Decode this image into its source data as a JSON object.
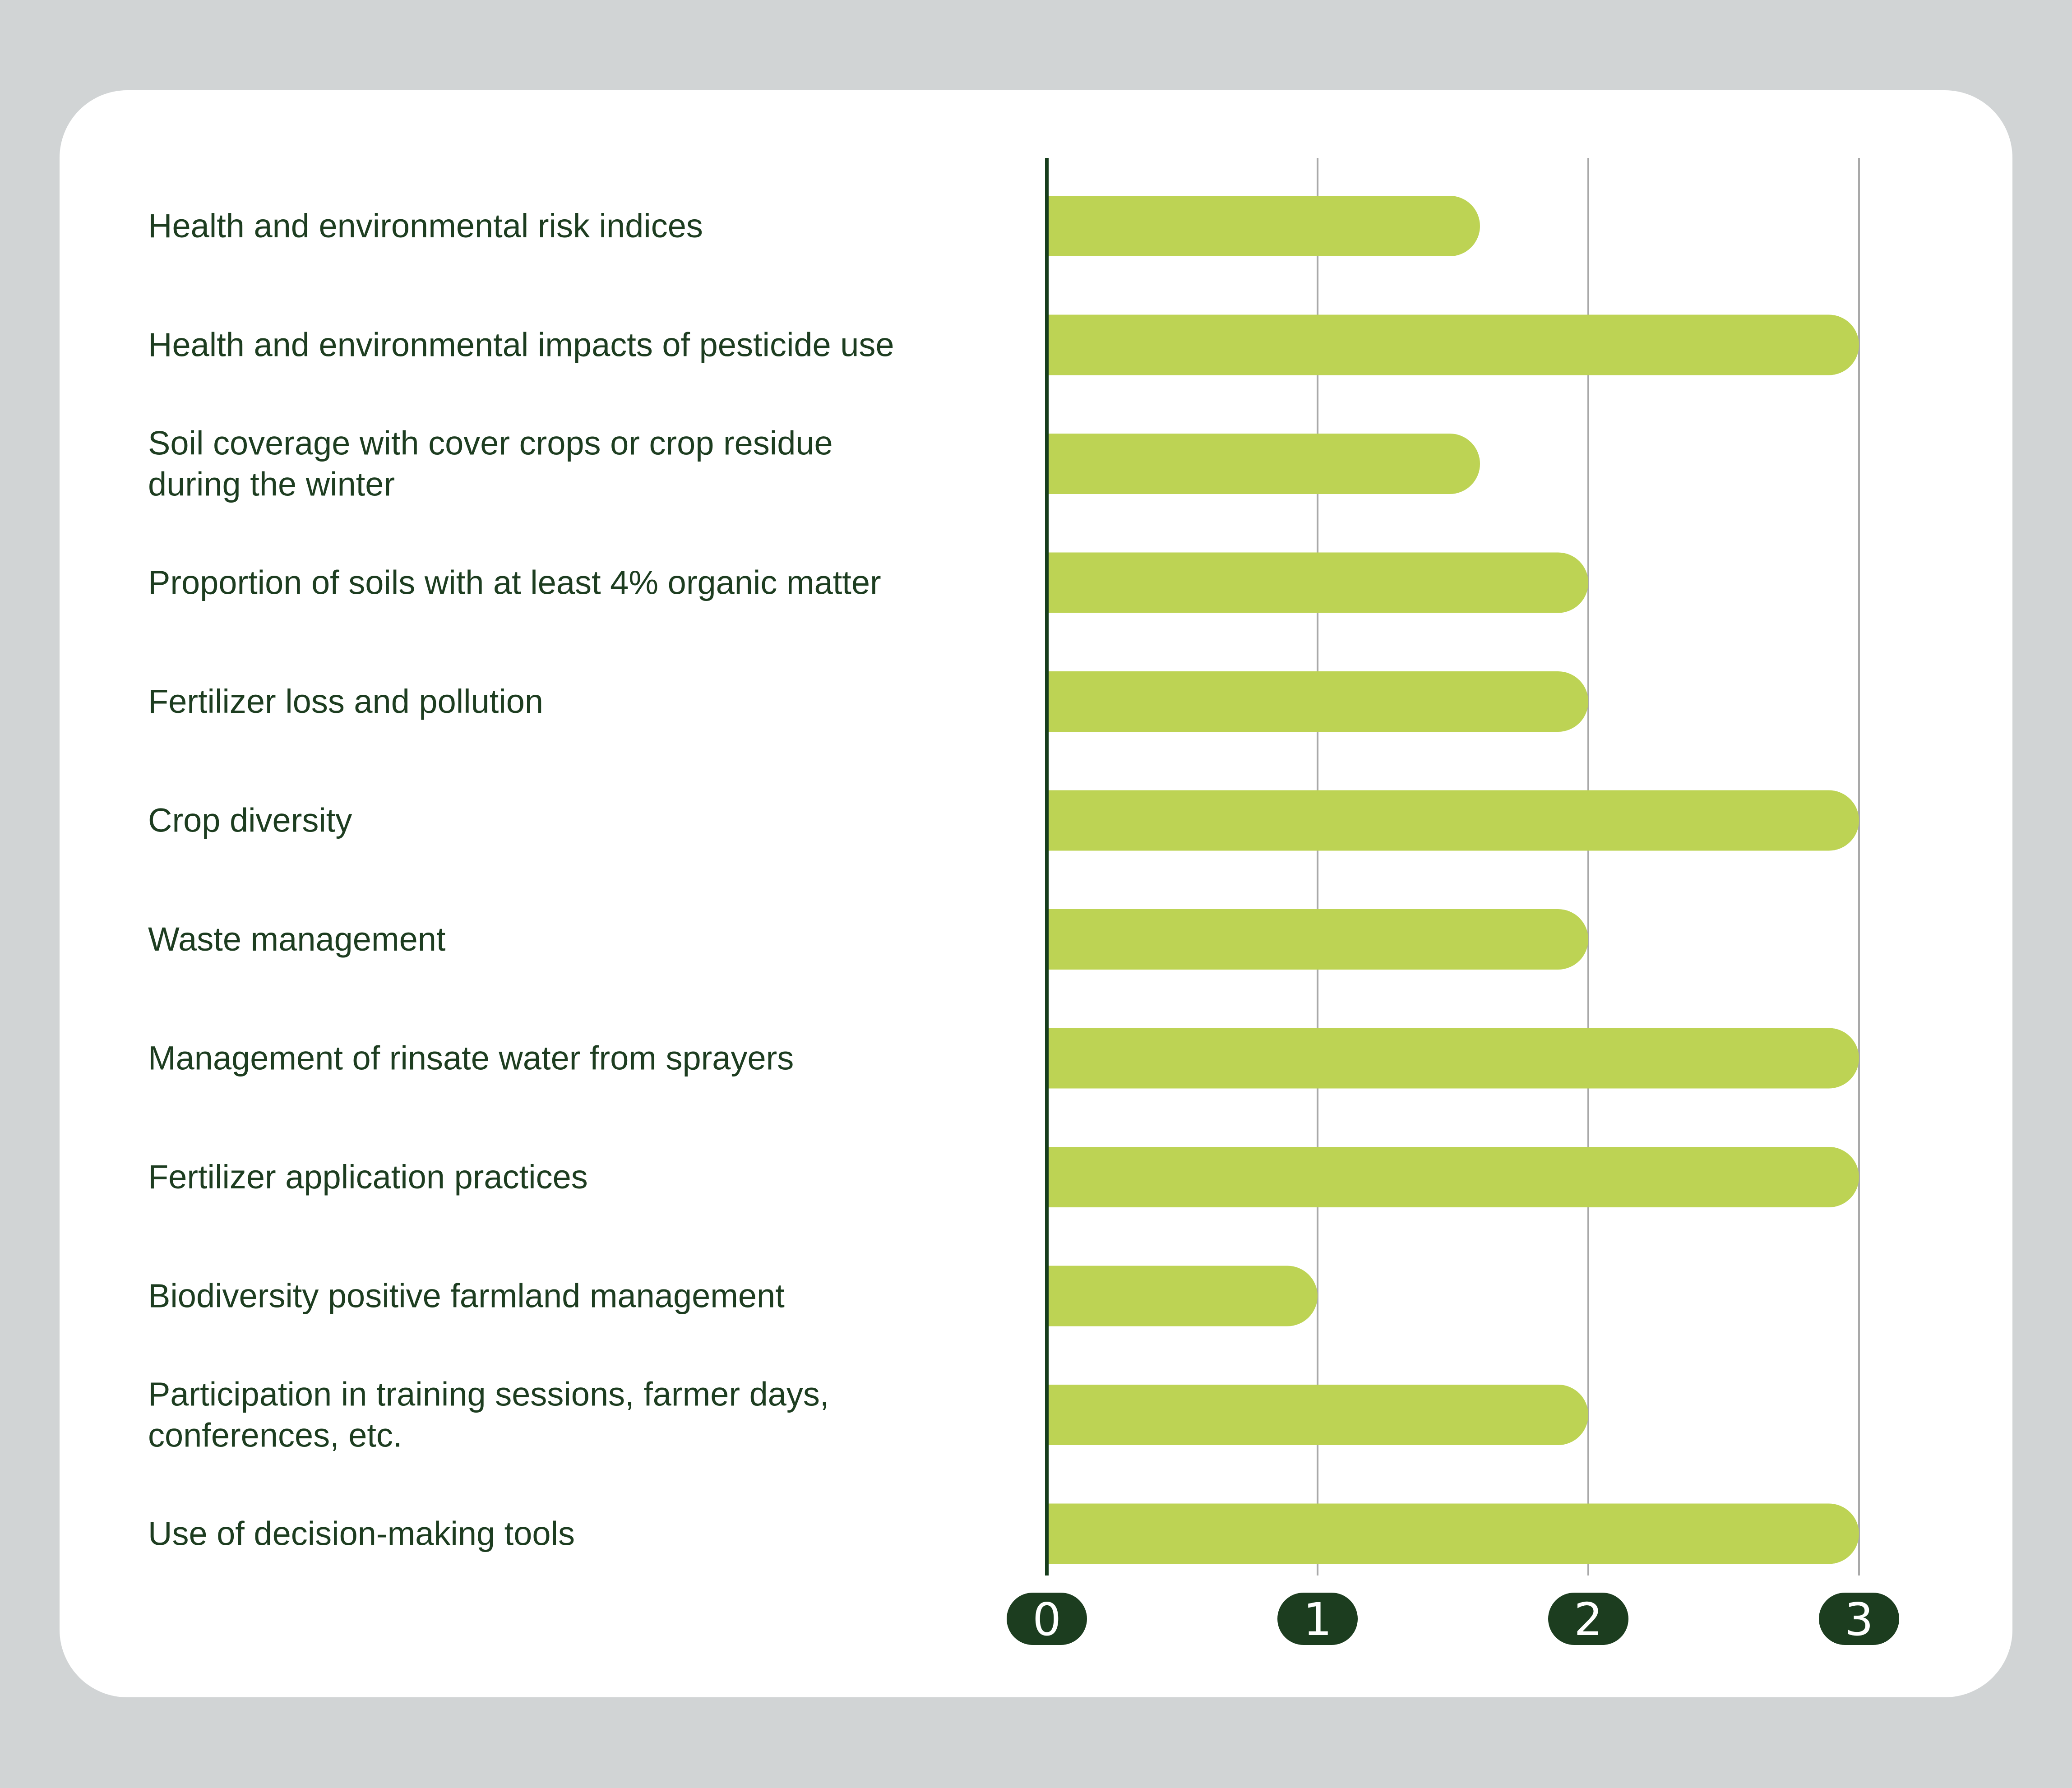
{
  "colors": {
    "page_background": "#d1d4d5",
    "card_background": "#ffffff",
    "bar": "#bdd354",
    "axis_line": "#163d1c",
    "grid_line": "#a9a9a9",
    "label_text": "#1d3d20",
    "tick_badge": "#1c3d1f",
    "tick_text": "#ffffff"
  },
  "chart_data": {
    "type": "bar",
    "orientation": "horizontal",
    "title": "",
    "xlabel": "",
    "ylabel": "",
    "xlim": [
      0,
      3
    ],
    "grid": true,
    "legend": "none",
    "x_ticks": [
      "0",
      "1",
      "2",
      "3"
    ],
    "categories": [
      [
        "Health and environmental risk indices"
      ],
      [
        "Health and environmental impacts of pesticide use"
      ],
      [
        "Soil coverage with cover crops or crop residue",
        "during the winter"
      ],
      [
        "Proportion of soils with at least 4% organic matter"
      ],
      [
        "Fertilizer loss and pollution"
      ],
      [
        "Crop diversity"
      ],
      [
        "Waste management"
      ],
      [
        "Management of rinsate water from sprayers"
      ],
      [
        "Fertilizer application practices"
      ],
      [
        "Biodiversity positive farmland management"
      ],
      [
        "Participation in training sessions, farmer days,",
        "conferences, etc."
      ],
      [
        "Use of decision-making tools"
      ]
    ],
    "values": [
      1.6,
      3,
      1.6,
      2,
      2,
      3,
      2,
      3,
      3,
      1,
      2,
      3
    ]
  }
}
